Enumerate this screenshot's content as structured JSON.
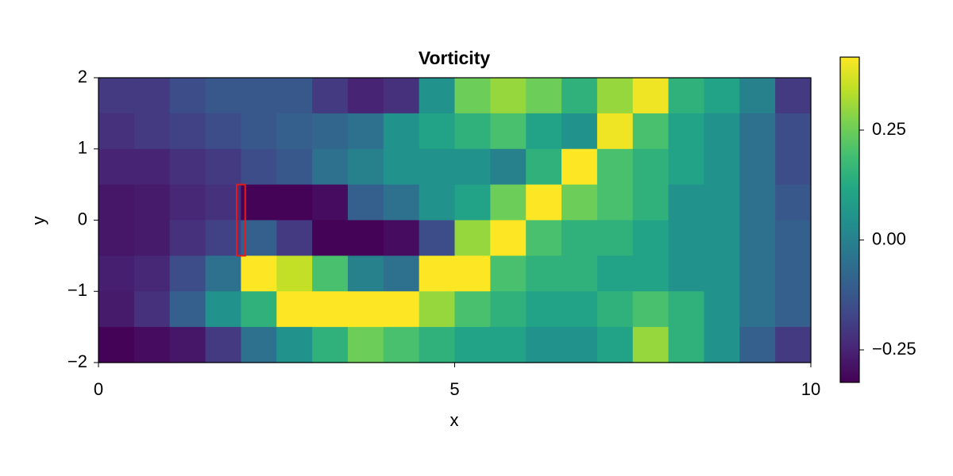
{
  "chart_data": {
    "type": "heatmap",
    "title": "Vorticity",
    "xlabel": "x",
    "ylabel": "y",
    "colormap": "viridis",
    "x": [
      0.25,
      0.75,
      1.25,
      1.75,
      2.25,
      2.75,
      3.25,
      3.75,
      4.25,
      4.75,
      5.25,
      5.75,
      6.25,
      6.75,
      7.25,
      7.75,
      8.25,
      8.75,
      9.25,
      9.75
    ],
    "y": [
      1.75,
      1.25,
      0.75,
      0.25,
      -0.25,
      -0.75,
      -1.25,
      -1.75
    ],
    "z": [
      [
        -0.2,
        -0.2,
        -0.15,
        -0.12,
        -0.12,
        -0.12,
        -0.2,
        -0.25,
        -0.22,
        0.05,
        0.25,
        0.3,
        0.25,
        0.15,
        0.3,
        0.4,
        0.15,
        0.1,
        0.0,
        -0.2
      ],
      [
        -0.22,
        -0.2,
        -0.18,
        -0.15,
        -0.12,
        -0.1,
        -0.08,
        -0.05,
        0.05,
        0.1,
        0.15,
        0.2,
        0.1,
        0.05,
        0.4,
        0.2,
        0.1,
        0.05,
        -0.05,
        -0.15
      ],
      [
        -0.25,
        -0.25,
        -0.22,
        -0.2,
        -0.15,
        -0.12,
        -0.05,
        0.0,
        0.05,
        0.05,
        0.05,
        0.0,
        0.15,
        0.42,
        0.2,
        0.15,
        0.1,
        0.05,
        -0.05,
        -0.15
      ],
      [
        -0.28,
        -0.27,
        -0.24,
        -0.22,
        -0.32,
        -0.32,
        -0.3,
        -0.1,
        -0.05,
        0.05,
        0.1,
        0.25,
        0.42,
        0.25,
        0.2,
        0.15,
        0.05,
        0.05,
        -0.05,
        -0.12
      ],
      [
        -0.28,
        -0.27,
        -0.22,
        -0.18,
        -0.1,
        -0.2,
        -0.32,
        -0.32,
        -0.3,
        -0.15,
        0.3,
        0.42,
        0.2,
        0.15,
        0.15,
        0.1,
        0.05,
        0.05,
        -0.05,
        -0.1
      ],
      [
        -0.26,
        -0.24,
        -0.15,
        -0.05,
        0.42,
        0.35,
        0.2,
        0.0,
        -0.05,
        0.42,
        0.42,
        0.2,
        0.15,
        0.15,
        0.1,
        0.1,
        0.05,
        0.05,
        -0.05,
        -0.1
      ],
      [
        -0.27,
        -0.22,
        -0.1,
        0.05,
        0.15,
        0.42,
        0.42,
        0.42,
        0.42,
        0.3,
        0.2,
        0.15,
        0.1,
        0.1,
        0.15,
        0.2,
        0.15,
        0.05,
        -0.05,
        -0.1
      ],
      [
        -0.32,
        -0.3,
        -0.28,
        -0.2,
        -0.05,
        0.05,
        0.15,
        0.25,
        0.2,
        0.15,
        0.1,
        0.1,
        0.05,
        0.05,
        0.1,
        0.3,
        0.15,
        0.05,
        -0.1,
        -0.2
      ]
    ],
    "xlim": [
      0,
      10
    ],
    "ylim": [
      -2,
      2
    ],
    "xticks": [
      0,
      5,
      10
    ],
    "yticks": [
      {
        "value": -2,
        "label": "−2"
      },
      {
        "value": -1,
        "label": "−1"
      },
      0,
      1,
      2
    ],
    "clim": [
      -0.324,
      0.416
    ],
    "cticks": [
      {
        "value": -0.25,
        "label": "−0.25"
      },
      {
        "value": 0,
        "label": "0.00"
      },
      {
        "value": 0.25,
        "label": "0.25"
      }
    ],
    "obstacle": {
      "x": [
        1.94,
        2.06
      ],
      "y": [
        -0.5,
        0.5
      ],
      "color": "#e41a1c"
    }
  }
}
